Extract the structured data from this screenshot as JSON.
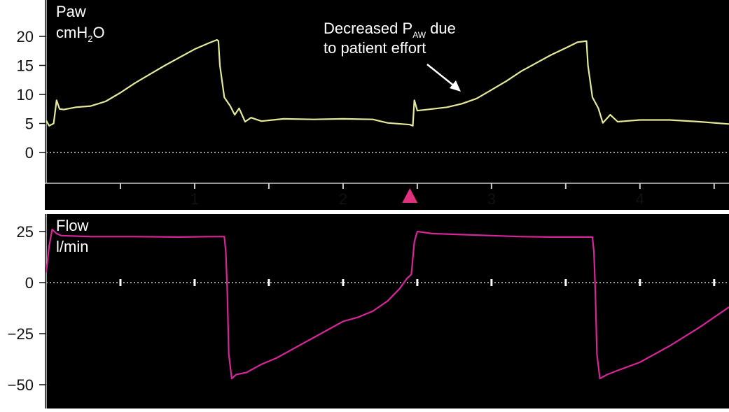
{
  "chart_data": [
    {
      "type": "line",
      "label": "Paw",
      "unit_base": "cmH",
      "unit_sub": "2",
      "unit_tail": "O",
      "ylim": [
        -5,
        22
      ],
      "yticks": [
        "20",
        "15",
        "10",
        "5",
        "0"
      ],
      "ytick_values": [
        20,
        15,
        10,
        5,
        0
      ],
      "xlim": [
        0,
        4.6
      ],
      "xticks": [
        "1",
        "2",
        "3",
        "4"
      ],
      "xtick_values": [
        1,
        2,
        3,
        4
      ],
      "minor_tick_values": [
        0.5,
        1.5,
        2.5,
        3.5,
        4.5
      ],
      "series": [
        {
          "color": "#e6e89a",
          "points": [
            [
              0,
              5.5
            ],
            [
              0.02,
              4.6
            ],
            [
              0.05,
              5.0
            ],
            [
              0.07,
              9.0
            ],
            [
              0.09,
              7.5
            ],
            [
              0.12,
              7.4
            ],
            [
              0.2,
              7.8
            ],
            [
              0.3,
              8.0
            ],
            [
              0.4,
              8.8
            ],
            [
              0.5,
              10.3
            ],
            [
              0.6,
              12.0
            ],
            [
              0.7,
              13.5
            ],
            [
              0.8,
              15.0
            ],
            [
              0.9,
              16.4
            ],
            [
              1.0,
              17.8
            ],
            [
              1.1,
              18.9
            ],
            [
              1.15,
              19.4
            ],
            [
              1.16,
              19.2
            ],
            [
              1.17,
              15.0
            ],
            [
              1.2,
              9.5
            ],
            [
              1.24,
              8.0
            ],
            [
              1.27,
              6.5
            ],
            [
              1.3,
              7.6
            ],
            [
              1.34,
              5.3
            ],
            [
              1.38,
              6.0
            ],
            [
              1.45,
              5.4
            ],
            [
              1.6,
              5.8
            ],
            [
              1.8,
              5.7
            ],
            [
              2.0,
              5.8
            ],
            [
              2.2,
              5.7
            ],
            [
              2.3,
              5.1
            ],
            [
              2.45,
              4.8
            ],
            [
              2.47,
              4.6
            ],
            [
              2.48,
              9.0
            ],
            [
              2.5,
              7.2
            ],
            [
              2.6,
              7.5
            ],
            [
              2.7,
              7.8
            ],
            [
              2.8,
              8.4
            ],
            [
              2.9,
              9.3
            ],
            [
              3.0,
              10.8
            ],
            [
              3.1,
              12.3
            ],
            [
              3.2,
              14.0
            ],
            [
              3.3,
              15.4
            ],
            [
              3.4,
              16.8
            ],
            [
              3.5,
              18.0
            ],
            [
              3.58,
              19.0
            ],
            [
              3.64,
              19.2
            ],
            [
              3.65,
              15.0
            ],
            [
              3.68,
              9.5
            ],
            [
              3.72,
              7.6
            ],
            [
              3.75,
              5.1
            ],
            [
              3.8,
              6.5
            ],
            [
              3.85,
              5.3
            ],
            [
              4.0,
              5.6
            ],
            [
              4.2,
              5.6
            ],
            [
              4.4,
              5.3
            ],
            [
              4.6,
              4.9
            ]
          ]
        }
      ],
      "annotation_line1_a": "Decreased P",
      "annotation_line1_sub": "AW",
      "annotation_line1_b": " due",
      "annotation_line2": "to patient effort",
      "marker": "patient-trigger-triangle",
      "marker_x": 2.45,
      "marker_color": "#e0307e",
      "background": "#000000",
      "gridline_color": "#cfcfcf"
    },
    {
      "type": "line",
      "label": "Flow",
      "unit": "l/min",
      "ylim": [
        -60,
        30
      ],
      "yticks": [
        "25",
        "0",
        "−25",
        "−50"
      ],
      "ytick_values": [
        25,
        0,
        -25,
        -50
      ],
      "xlim": [
        0,
        4.6
      ],
      "zero_tick_values": [
        0.5,
        1,
        1.5,
        2,
        2.5,
        3,
        3.5,
        4,
        4.5
      ],
      "series": [
        {
          "color": "#d8259a",
          "points": [
            [
              0,
              5
            ],
            [
              0.02,
              18
            ],
            [
              0.04,
              26
            ],
            [
              0.07,
              24
            ],
            [
              0.1,
              23
            ],
            [
              0.3,
              22.5
            ],
            [
              0.6,
              22.5
            ],
            [
              0.9,
              22.3
            ],
            [
              1.1,
              22.5
            ],
            [
              1.2,
              22.5
            ],
            [
              1.21,
              15
            ],
            [
              1.22,
              -5
            ],
            [
              1.23,
              -35
            ],
            [
              1.25,
              -47
            ],
            [
              1.28,
              -45
            ],
            [
              1.35,
              -44
            ],
            [
              1.45,
              -40
            ],
            [
              1.55,
              -37
            ],
            [
              1.7,
              -31
            ],
            [
              1.85,
              -25
            ],
            [
              2.0,
              -19
            ],
            [
              2.1,
              -17
            ],
            [
              2.2,
              -14
            ],
            [
              2.3,
              -9
            ],
            [
              2.38,
              -3
            ],
            [
              2.43,
              2
            ],
            [
              2.46,
              4
            ],
            [
              2.48,
              20
            ],
            [
              2.5,
              25
            ],
            [
              2.6,
              24
            ],
            [
              2.8,
              23.5
            ],
            [
              3.0,
              23
            ],
            [
              3.2,
              22.5
            ],
            [
              3.4,
              22.3
            ],
            [
              3.6,
              22.3
            ],
            [
              3.68,
              22.3
            ],
            [
              3.69,
              15
            ],
            [
              3.7,
              -5
            ],
            [
              3.71,
              -35
            ],
            [
              3.73,
              -47
            ],
            [
              3.78,
              -45
            ],
            [
              3.85,
              -43
            ],
            [
              4.0,
              -39
            ],
            [
              4.2,
              -31
            ],
            [
              4.4,
              -22
            ],
            [
              4.6,
              -12
            ]
          ]
        }
      ],
      "background": "#000000",
      "gridline_color": "#cfcfcf"
    }
  ]
}
